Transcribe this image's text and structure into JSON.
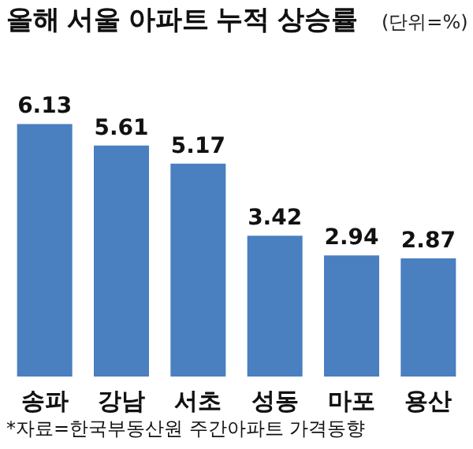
{
  "chart_data": {
    "type": "bar",
    "title": "올해 서울 아파트 누적 상승률",
    "subtitle": "(단위=%)",
    "categories": [
      "송파",
      "강남",
      "서초",
      "성동",
      "마포",
      "용산"
    ],
    "values": [
      6.13,
      5.61,
      5.17,
      3.42,
      2.94,
      2.87
    ],
    "color": "#4a7fc0",
    "data_labels": true,
    "annotations": [
      "*자료=한국부동산원 주간아파트 가격동향"
    ]
  }
}
